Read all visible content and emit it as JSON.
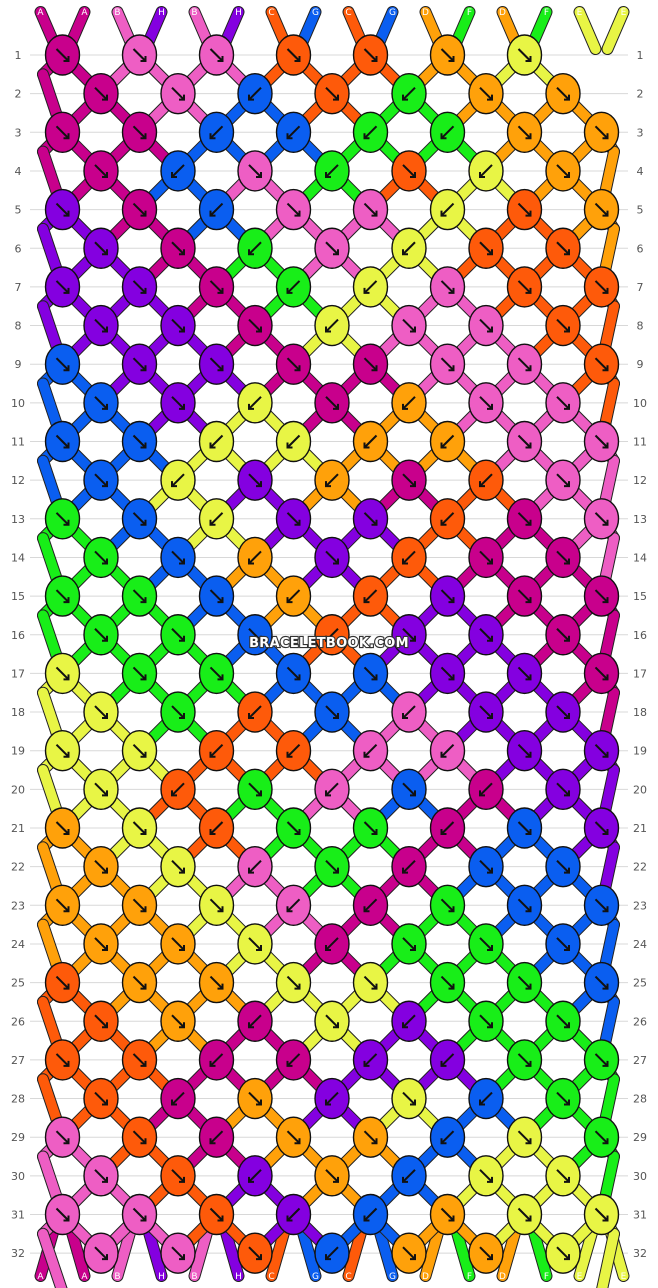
{
  "pattern": {
    "watermark": "BRACELETBOOK.COM",
    "row_count": 32,
    "colors": {
      "A": "#c8008c",
      "B": "#ee5ec4",
      "C": "#fe5a0a",
      "D": "#ffa10a",
      "E": "#e8f545",
      "F": "#18ee18",
      "G": "#0a5ef0",
      "H": "#8400e0"
    },
    "strings_top": [
      "A",
      "A",
      "B",
      "H",
      "B",
      "H",
      "C",
      "G",
      "C",
      "G",
      "D",
      "F",
      "D",
      "F",
      "E",
      "E"
    ],
    "strings_bottom": [
      "A",
      "A",
      "B",
      "H",
      "B",
      "H",
      "C",
      "G",
      "C",
      "G",
      "D",
      "F",
      "D",
      "F",
      "E",
      "E"
    ],
    "rows": [
      [
        "A",
        "B",
        "B",
        "C",
        "C",
        "D",
        "E"
      ],
      [
        "A",
        "B",
        "G",
        "C",
        "F",
        "D",
        "D"
      ],
      [
        "A",
        "A",
        "G",
        "G",
        "F",
        "F",
        "D",
        "D"
      ],
      [
        "A",
        "G",
        "B",
        "F",
        "C",
        "E",
        "D"
      ],
      [
        "H",
        "A",
        "G",
        "B",
        "B",
        "E",
        "C",
        "D"
      ],
      [
        "H",
        "A",
        "F",
        "B",
        "E",
        "C",
        "C"
      ],
      [
        "H",
        "H",
        "A",
        "F",
        "E",
        "B",
        "C",
        "C"
      ],
      [
        "H",
        "H",
        "A",
        "E",
        "B",
        "B",
        "C"
      ],
      [
        "G",
        "H",
        "H",
        "A",
        "A",
        "B",
        "B",
        "C"
      ],
      [
        "G",
        "H",
        "E",
        "A",
        "D",
        "B",
        "B"
      ],
      [
        "G",
        "G",
        "E",
        "E",
        "D",
        "D",
        "B",
        "B"
      ],
      [
        "G",
        "E",
        "H",
        "D",
        "A",
        "C",
        "B"
      ],
      [
        "F",
        "G",
        "E",
        "H",
        "H",
        "C",
        "A",
        "B"
      ],
      [
        "F",
        "G",
        "D",
        "H",
        "C",
        "A",
        "A"
      ],
      [
        "F",
        "F",
        "G",
        "D",
        "C",
        "H",
        "A",
        "A"
      ],
      [
        "F",
        "F",
        "G",
        "C",
        "H",
        "H",
        "A"
      ],
      [
        "E",
        "F",
        "F",
        "G",
        "G",
        "H",
        "H",
        "A"
      ],
      [
        "E",
        "F",
        "C",
        "G",
        "B",
        "H",
        "H"
      ],
      [
        "E",
        "E",
        "C",
        "C",
        "B",
        "B",
        "H",
        "H"
      ],
      [
        "E",
        "C",
        "F",
        "B",
        "G",
        "A",
        "H"
      ],
      [
        "D",
        "E",
        "C",
        "F",
        "F",
        "A",
        "G",
        "H"
      ],
      [
        "D",
        "E",
        "B",
        "F",
        "A",
        "G",
        "G"
      ],
      [
        "D",
        "D",
        "E",
        "B",
        "A",
        "F",
        "G",
        "G"
      ],
      [
        "D",
        "D",
        "E",
        "A",
        "F",
        "F",
        "G"
      ],
      [
        "C",
        "D",
        "D",
        "E",
        "E",
        "F",
        "F",
        "G"
      ],
      [
        "C",
        "D",
        "A",
        "E",
        "H",
        "F",
        "F"
      ],
      [
        "C",
        "C",
        "A",
        "A",
        "H",
        "H",
        "F",
        "F"
      ],
      [
        "C",
        "A",
        "D",
        "H",
        "E",
        "G",
        "F"
      ],
      [
        "B",
        "C",
        "A",
        "D",
        "D",
        "G",
        "E",
        "F"
      ],
      [
        "B",
        "C",
        "H",
        "D",
        "G",
        "E",
        "E"
      ],
      [
        "B",
        "B",
        "C",
        "H",
        "G",
        "D",
        "E",
        "E"
      ],
      [
        "B",
        "B",
        "C",
        "G",
        "D",
        "D",
        "E"
      ]
    ],
    "knot_directions": [
      [
        "se",
        "se",
        "se",
        "se",
        "se",
        "se",
        "se"
      ],
      [
        "se",
        "se",
        "sw",
        "se",
        "sw",
        "se",
        "se"
      ],
      [
        "se",
        "se",
        "sw",
        "sw",
        "sw",
        "sw",
        "se",
        "se"
      ],
      [
        "se",
        "sw",
        "se",
        "sw",
        "se",
        "sw",
        "se"
      ],
      [
        "se",
        "se",
        "sw",
        "se",
        "se",
        "sw",
        "se",
        "se"
      ],
      [
        "se",
        "se",
        "sw",
        "se",
        "sw",
        "se",
        "se"
      ],
      [
        "se",
        "se",
        "se",
        "sw",
        "sw",
        "se",
        "se",
        "se"
      ],
      [
        "se",
        "se",
        "se",
        "sw",
        "se",
        "se",
        "se"
      ],
      [
        "se",
        "se",
        "se",
        "se",
        "se",
        "se",
        "se",
        "se"
      ],
      [
        "se",
        "se",
        "sw",
        "se",
        "sw",
        "se",
        "se"
      ],
      [
        "se",
        "se",
        "sw",
        "sw",
        "sw",
        "sw",
        "se",
        "se"
      ],
      [
        "se",
        "sw",
        "se",
        "sw",
        "se",
        "sw",
        "se"
      ],
      [
        "se",
        "se",
        "sw",
        "se",
        "se",
        "sw",
        "se",
        "se"
      ],
      [
        "se",
        "se",
        "sw",
        "se",
        "sw",
        "se",
        "se"
      ],
      [
        "se",
        "se",
        "se",
        "sw",
        "sw",
        "se",
        "se",
        "se"
      ],
      [
        "se",
        "se",
        "se",
        "sw",
        "se",
        "se",
        "se"
      ],
      [
        "se",
        "se",
        "se",
        "se",
        "se",
        "se",
        "se",
        "se"
      ],
      [
        "se",
        "se",
        "sw",
        "se",
        "sw",
        "se",
        "se"
      ],
      [
        "se",
        "se",
        "sw",
        "sw",
        "sw",
        "sw",
        "se",
        "se"
      ],
      [
        "se",
        "sw",
        "se",
        "sw",
        "se",
        "sw",
        "se"
      ],
      [
        "se",
        "se",
        "sw",
        "se",
        "se",
        "sw",
        "se",
        "se"
      ],
      [
        "se",
        "se",
        "sw",
        "se",
        "sw",
        "se",
        "se"
      ],
      [
        "se",
        "se",
        "se",
        "sw",
        "sw",
        "se",
        "se",
        "se"
      ],
      [
        "se",
        "se",
        "se",
        "sw",
        "se",
        "se",
        "se"
      ],
      [
        "se",
        "se",
        "se",
        "se",
        "se",
        "se",
        "se",
        "se"
      ],
      [
        "se",
        "se",
        "sw",
        "se",
        "sw",
        "se",
        "se"
      ],
      [
        "se",
        "se",
        "sw",
        "sw",
        "sw",
        "sw",
        "se",
        "se"
      ],
      [
        "se",
        "sw",
        "se",
        "sw",
        "se",
        "sw",
        "se"
      ],
      [
        "se",
        "se",
        "sw",
        "se",
        "se",
        "sw",
        "se",
        "se"
      ],
      [
        "se",
        "se",
        "sw",
        "se",
        "sw",
        "se",
        "se"
      ],
      [
        "se",
        "se",
        "se",
        "sw",
        "sw",
        "se",
        "se",
        "se"
      ],
      [
        "se",
        "se",
        "se",
        "sw",
        "se",
        "se",
        "se"
      ]
    ]
  }
}
